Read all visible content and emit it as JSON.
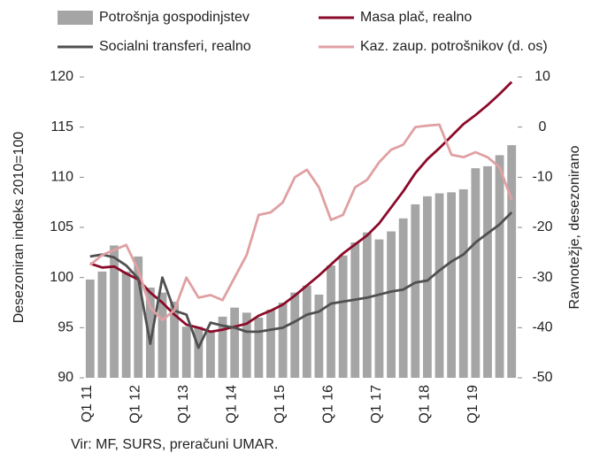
{
  "chart_data": {
    "type": "bar",
    "categories": [
      "Q1 11",
      null,
      null,
      null,
      "Q1 12",
      null,
      null,
      null,
      "Q1 13",
      null,
      null,
      null,
      "Q1 14",
      null,
      null,
      null,
      "Q1 15",
      null,
      null,
      null,
      "Q1 16",
      null,
      null,
      null,
      "Q1 17",
      null,
      null,
      null,
      "Q1 18",
      null,
      null,
      null,
      "Q1 19",
      null,
      null,
      null
    ],
    "series": [
      {
        "name": "Potrošnja gospodinjstev",
        "type": "bar",
        "color": "#a5a5a5",
        "axis": "y",
        "values": [
          99.8,
          100.6,
          103.2,
          100.6,
          102.1,
          99.0,
          98.5,
          97.6,
          95.1,
          95.1,
          94.6,
          96.1,
          97.0,
          96.5,
          96.0,
          96.8,
          97.5,
          98.5,
          99.2,
          98.3,
          101.2,
          102.2,
          103.5,
          104.5,
          103.8,
          104.6,
          105.9,
          107.3,
          108.1,
          108.4,
          108.5,
          108.8,
          110.9,
          111.1,
          112.2,
          113.2
        ]
      },
      {
        "name": "Masa plač, realno",
        "type": "line",
        "color": "#8b0a2a",
        "axis": "y",
        "values": [
          101.4,
          101.0,
          101.1,
          100.4,
          99.8,
          98.5,
          97.5,
          96.3,
          95.3,
          95.0,
          94.6,
          94.8,
          95.1,
          95.4,
          96.2,
          96.7,
          97.3,
          98.2,
          99.2,
          100.2,
          101.3,
          102.4,
          103.3,
          104.2,
          105.4,
          107.0,
          108.6,
          110.4,
          111.8,
          112.9,
          114.1,
          115.3,
          116.2,
          117.2,
          118.3,
          119.5
        ]
      },
      {
        "name": "Socialni transferi, realno",
        "type": "line",
        "color": "#505050",
        "axis": "y",
        "values": [
          102.1,
          102.3,
          102.0,
          101.2,
          99.9,
          93.4,
          100.0,
          96.7,
          96.3,
          93.0,
          95.5,
          95.2,
          95.0,
          94.6,
          94.6,
          94.8,
          95.0,
          95.6,
          96.3,
          96.6,
          97.4,
          97.6,
          97.8,
          98.0,
          98.3,
          98.6,
          98.8,
          99.5,
          99.7,
          100.7,
          101.6,
          102.3,
          103.5,
          104.4,
          105.3,
          106.5
        ]
      },
      {
        "name": "Kaz. zaup. potrošnikov (d. os)",
        "type": "line",
        "color": "#e0a0a3",
        "axis": "y2",
        "values": [
          -27.5,
          -25.5,
          -24.5,
          -23.5,
          -28.5,
          -36,
          -38.5,
          -36.5,
          -30,
          -34,
          -33.5,
          -34.5,
          -30,
          -25.5,
          -17.5,
          -17,
          -15,
          -10,
          -8.5,
          -12,
          -18.5,
          -17.5,
          -12,
          -10.5,
          -7,
          -4.5,
          -3.5,
          0,
          0.3,
          0.5,
          -5.5,
          -6,
          -5,
          -6,
          -8,
          -14.5
        ]
      }
    ],
    "ylabel": "Desezoniran indeks 2010=100",
    "y2label": "Ravnotežje, desezonirano",
    "ylim": [
      90,
      120
    ],
    "yticks": [
      90,
      95,
      100,
      105,
      110,
      115,
      120
    ],
    "y2lim": [
      -50,
      10
    ],
    "y2ticks": [
      -50,
      -40,
      -30,
      -20,
      -10,
      0,
      10
    ],
    "source": "Vir: MF, SURS, preračuni UMAR."
  }
}
